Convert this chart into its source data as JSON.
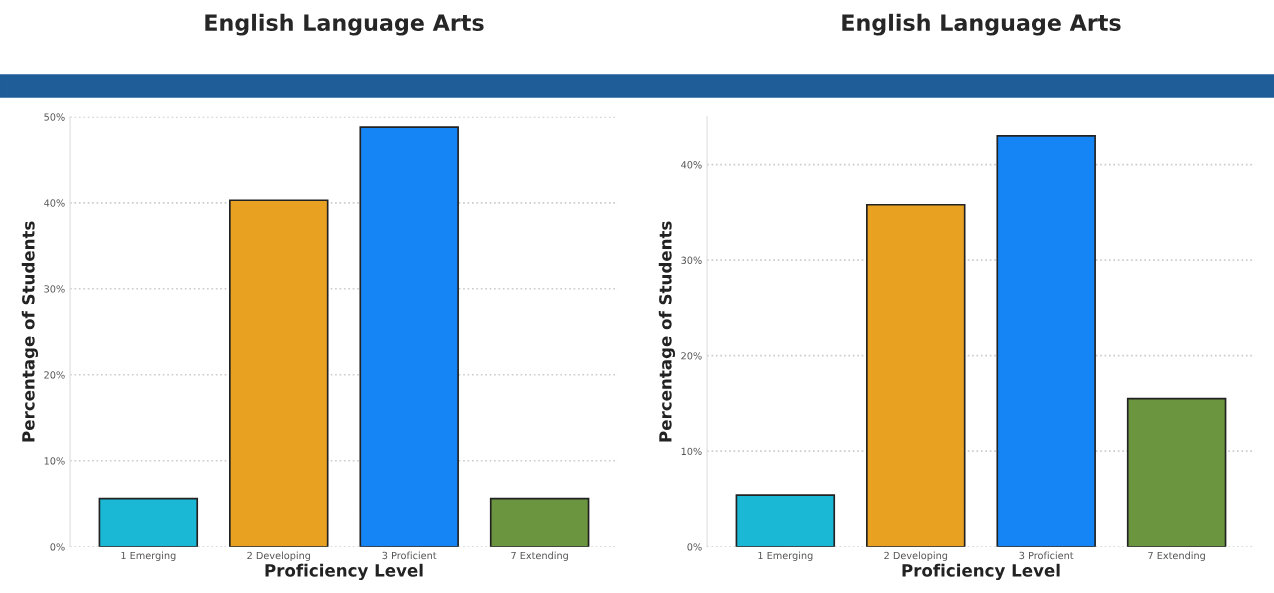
{
  "chart_data": [
    {
      "type": "bar",
      "title": "English Language Arts",
      "xlabel": "Proficiency Level",
      "ylabel": "Percentage of Students",
      "categories": [
        "1 Emerging",
        "2 Developing",
        "3 Proficient",
        "7 Extending"
      ],
      "values": [
        5.6,
        40.3,
        48.8,
        5.6
      ],
      "colors": [
        "#1bb8d6",
        "#e9a122",
        "#1585f5",
        "#6c953f"
      ],
      "ylim": [
        0,
        50
      ],
      "yticks": [
        {
          "value": 0,
          "label": "0%"
        },
        {
          "value": 10,
          "label": "10%"
        },
        {
          "value": 20,
          "label": "20%"
        },
        {
          "value": 30,
          "label": "30%"
        },
        {
          "value": 40,
          "label": "40%"
        },
        {
          "value": 50,
          "label": "50%"
        }
      ],
      "grid": "y"
    },
    {
      "type": "bar",
      "title": "English Language Arts",
      "xlabel": "Proficiency Level",
      "ylabel": "Percentage of Students",
      "categories": [
        "1 Emerging",
        "2 Developing",
        "3 Proficient",
        "7 Extending"
      ],
      "values": [
        5.4,
        35.8,
        43.0,
        15.5
      ],
      "colors": [
        "#1bb8d6",
        "#e9a122",
        "#1585f5",
        "#6c953f"
      ],
      "ylim": [
        0,
        45
      ],
      "yticks": [
        {
          "value": 0,
          "label": "0%"
        },
        {
          "value": 10,
          "label": "10%"
        },
        {
          "value": 20,
          "label": "20%"
        },
        {
          "value": 30,
          "label": "30%"
        },
        {
          "value": 40,
          "label": "40%"
        }
      ],
      "grid": "y"
    }
  ]
}
